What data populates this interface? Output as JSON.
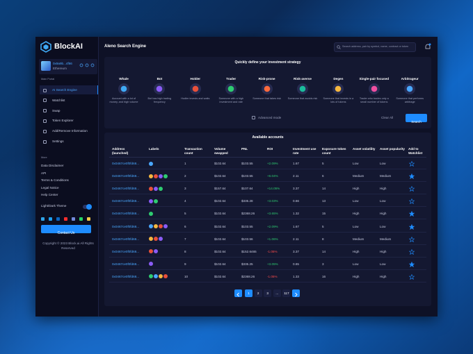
{
  "brand": {
    "name": "BlockAI"
  },
  "user": {
    "address": "0x9a9b...4f66",
    "network": "Ethereum"
  },
  "sidebar": {
    "main_label": "Main Portal",
    "menu": [
      "AI Search Engine",
      "Watchlist",
      "Swap",
      "Token Explorer",
      "Add/Remove Information",
      "Settings"
    ],
    "active": 0,
    "more_label": "More",
    "more_links": [
      "Data Disclaimer",
      "API",
      "Terms & Conditions",
      "Legal Notice",
      "Help Center"
    ],
    "theme_label": "Light/Dark Theme",
    "contact_button": "Contact Us",
    "copyright": "Copyright © 2023 Block.ai All Rights Reserved"
  },
  "header": {
    "title": "Aleno Search Engine",
    "search_placeholder": "Search address, pair by symbol, name, contract or token"
  },
  "strategy": {
    "title": "Quickly define your investment strategy",
    "cards": [
      {
        "label": "Whale",
        "description": "Account with a lot of money, and high volume"
      },
      {
        "label": "Bot",
        "description": "Bot has high trading frequency"
      },
      {
        "label": "Holder",
        "description": "Hodler invests and waits"
      },
      {
        "label": "Trader",
        "description": "Someone with a high investment and rate"
      },
      {
        "label": "Risk-prone",
        "description": "Someone that takes risk"
      },
      {
        "label": "Risk-averse",
        "description": "Someone that avoids risk"
      },
      {
        "label": "Degen",
        "description": "Someone that invests in a lots of tokens"
      },
      {
        "label": "Single-pair focused",
        "description": "Trader who trades only a small number of tokens"
      },
      {
        "label": "Arbitrageur",
        "description": "Someone that performs arbitrage"
      }
    ],
    "advanced_mode": "Advanced mode",
    "clear_button": "Clear All",
    "search_button": "Search"
  },
  "accounts": {
    "title": "Available accounts",
    "columns": [
      "Address (launched)",
      "Labels",
      "Transaction count",
      "Volume swapped",
      "PNL",
      "ROI",
      "Investment use rate",
      "Exposure token count",
      "Asset volatility",
      "Asset popularity",
      "Add to Watchlist"
    ],
    "rows": [
      [
        "0x0467ce0f0fd68...",
        "1",
        "$102.64",
        "$103.55",
        "+2.09%",
        "1.67",
        "5",
        "Low",
        "Low"
      ],
      [
        "0x0467ce0f0fd68...",
        "2",
        "$102.64",
        "$103.55",
        "+6.04%",
        "2.11",
        "6",
        "Medium",
        "Medium"
      ],
      [
        "0x0467ce0f0fd68...",
        "3",
        "$157.64",
        "$107.64",
        "+14.05%",
        "3.37",
        "14",
        "High",
        "High"
      ],
      [
        "0x0467ce0f0fd68...",
        "4",
        "$102.64",
        "$335.28",
        "+3.03%",
        "0.66",
        "13",
        "Low",
        "Low"
      ],
      [
        "0x0467ce0f0fd68...",
        "5",
        "$102.64",
        "$2368.26",
        "+3.65%",
        "1.32",
        "15",
        "High",
        "High"
      ],
      [
        "0x0467ce0f0fd68...",
        "6",
        "$102.64",
        "$103.55",
        "+2.09%",
        "1.67",
        "5",
        "Low",
        "Low"
      ],
      [
        "0x0467ce0f0fd68...",
        "7",
        "$102.64",
        "$103.56",
        "+1.06%",
        "2.11",
        "8",
        "Medium",
        "Medium"
      ],
      [
        "0x0467ce0f0fd68...",
        "8",
        "$102.64",
        "$152.6465",
        "-1.05%",
        "3.37",
        "14",
        "High",
        "High"
      ],
      [
        "0x0467ce0f0fd68...",
        "9",
        "$102.64",
        "$335.25",
        "+3.05%",
        "0.65",
        "3",
        "Low",
        "Low"
      ],
      [
        "0x0467ce0f0fd68...",
        "10",
        "$102.64",
        "$2368.26",
        "-1.05%",
        "1.33",
        "16",
        "High",
        "High"
      ]
    ],
    "watchlisted": [
      false,
      true,
      false,
      false,
      true,
      true,
      false,
      false,
      true,
      false
    ]
  },
  "pagination": {
    "pages": [
      "1",
      "2",
      "3",
      "...",
      "117"
    ],
    "current": 0
  }
}
